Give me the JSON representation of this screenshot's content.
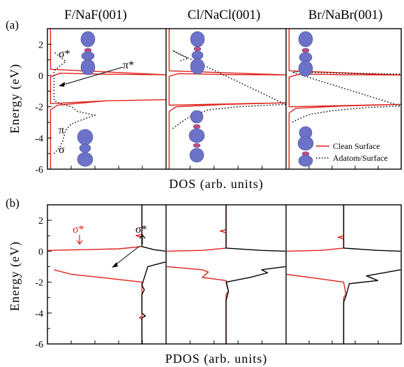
{
  "figure": {
    "column_titles": [
      "F/NaF(001)",
      "Cl/NaCl(001)",
      "Br/NaBr(001)"
    ],
    "panel_labels": [
      "(a)",
      "(b)"
    ],
    "ylabel": "Energy  (eV)",
    "xlabel_a": "DOS  (arb. units)",
    "xlabel_b": "PDOS  (arb. units)",
    "yticks": [
      "2",
      "0",
      "-2",
      "-4",
      "-6"
    ],
    "annotations_a": {
      "sigma_star": "σ*",
      "pi_star": "π*",
      "pi": "π",
      "sigma": "σ"
    },
    "annotations_b": {
      "sigma_down": "σ*",
      "sigma_up": "σ*"
    },
    "legend": [
      "Clean Surface",
      "Adatom/Surface"
    ],
    "colors": {
      "clean": "#e0201b",
      "adatom": "#000000",
      "orbital": "#6b72c8"
    }
  },
  "chart_data": [
    {
      "type": "line",
      "panel": "(a)",
      "xlabel": "DOS  (arb. units)",
      "ylabel": "Energy  (eV)",
      "ylim": [
        -6,
        3
      ],
      "legend_placement": "bottom-right",
      "columns": [
        {
          "title": "F/NaF(001)",
          "series": [
            {
              "name": "Clean Surface",
              "points": [
                [
                  0.02,
                  -6
                ],
                [
                  0.02,
                  -2.2
                ],
                [
                  0.08,
                  -1.9
                ],
                [
                  0.5,
                  -1.62
                ],
                [
                  1,
                  -1.55
                ],
                [
                  0.5,
                  -1.62
                ],
                [
                  0.02,
                  -1.8
                ],
                [
                  0.02,
                  -0.1
                ],
                [
                  0.1,
                  0.15
                ],
                [
                  0.5,
                  0.08
                ],
                [
                  1,
                  0.05
                ],
                [
                  0.02,
                  0.4
                ],
                [
                  0.02,
                  3
                ]
              ]
            },
            {
              "name": "Adatom/Surface",
              "points": [
                [
                  0.05,
                  -5
                ],
                [
                  0.1,
                  -4.6
                ],
                [
                  0.12,
                  -4.3
                ],
                [
                  0.15,
                  -3.5
                ],
                [
                  0.2,
                  -3.1
                ],
                [
                  0.3,
                  -2.8
                ],
                [
                  0.4,
                  -2.55
                ],
                [
                  0.25,
                  -2.3
                ],
                [
                  0.2,
                  -2.0
                ],
                [
                  0.1,
                  -1.8
                ],
                [
                  0.05,
                  -1.6
                ],
                [
                  0.05,
                  0.3
                ],
                [
                  0.1,
                  0.6
                ],
                [
                  0.15,
                  0.9
                ],
                [
                  0.1,
                  1.2
                ],
                [
                  0.05,
                  1.5
                ]
              ]
            }
          ]
        },
        {
          "title": "Cl/NaCl(001)",
          "series": [
            {
              "name": "Clean Surface",
              "points": [
                [
                  0.02,
                  -6
                ],
                [
                  0.02,
                  -2.3
                ],
                [
                  0.08,
                  -2.0
                ],
                [
                  0.5,
                  -1.85
                ],
                [
                  1,
                  -1.75
                ],
                [
                  0.02,
                  -1.9
                ],
                [
                  0.02,
                  -0.05
                ],
                [
                  0.1,
                  0.12
                ],
                [
                  0.5,
                  0.06
                ],
                [
                  1,
                  0.04
                ],
                [
                  0.02,
                  0.3
                ],
                [
                  0.02,
                  3
                ]
              ]
            },
            {
              "name": "Adatom/Surface",
              "points": [
                [
                  0.05,
                  -3.4
                ],
                [
                  0.12,
                  -3.0
                ],
                [
                  0.2,
                  -2.6
                ],
                [
                  0.35,
                  -2.2
                ],
                [
                  0.6,
                  -2.0
                ],
                [
                  1,
                  -1.85
                ],
                [
                  0.05,
                  1.6
                ],
                [
                  0.12,
                  1.3
                ],
                [
                  0.18,
                  1.1
                ],
                [
                  0.1,
                  0.9
                ]
              ]
            }
          ]
        },
        {
          "title": "Br/NaBr(001)",
          "series": [
            {
              "name": "Clean Surface",
              "points": [
                [
                  0.02,
                  -6
                ],
                [
                  0.02,
                  -2.4
                ],
                [
                  0.08,
                  -2.1
                ],
                [
                  0.5,
                  -1.95
                ],
                [
                  1,
                  -1.85
                ],
                [
                  0.02,
                  -2.0
                ],
                [
                  0.02,
                  -0.1
                ],
                [
                  0.12,
                  0.1
                ],
                [
                  0.5,
                  0.05
                ],
                [
                  1,
                  0.03
                ],
                [
                  0.02,
                  0.3
                ],
                [
                  0.02,
                  3
                ]
              ]
            },
            {
              "name": "Adatom/Surface",
              "points": [
                [
                  0.05,
                  -3.0
                ],
                [
                  0.1,
                  -2.8
                ],
                [
                  0.2,
                  -2.5
                ],
                [
                  0.4,
                  -2.25
                ],
                [
                  0.7,
                  -2.05
                ],
                [
                  1,
                  -1.95
                ],
                [
                  0.05,
                  0.2
                ],
                [
                  0.1,
                  0.25
                ],
                [
                  0.3,
                  0.18
                ],
                [
                  0.6,
                  0.12
                ],
                [
                  1,
                  0.1
                ]
              ]
            }
          ]
        }
      ]
    },
    {
      "type": "line",
      "panel": "(b)",
      "xlabel": "PDOS  (arb. units)",
      "ylabel": "Energy  (eV)",
      "ylim": [
        -6,
        3
      ],
      "columns": [
        {
          "title": "F/NaF(001)",
          "series": [
            {
              "color": "red",
              "points": [
                [
                  0.05,
                  -1.2
                ],
                [
                  0.2,
                  -1.5
                ],
                [
                  0.45,
                  -1.7
                ],
                [
                  0.8,
                  -2.0
                ],
                [
                  0.8,
                  -4.2
                ],
                [
                  0.78,
                  -4.3
                ],
                [
                  0.8,
                  -4.4
                ],
                [
                  0.8,
                  -6
                ]
              ]
            },
            {
              "color": "red",
              "points": [
                [
                  0.8,
                  3
                ],
                [
                  0.8,
                  1.1
                ],
                [
                  0.75,
                  1.0
                ],
                [
                  0.8,
                  0.9
                ],
                [
                  0.8,
                  0.3
                ],
                [
                  0.6,
                  0.15
                ],
                [
                  0.0,
                  0.05
                ]
              ]
            },
            {
              "color": "black",
              "points": [
                [
                  0.8,
                  3
                ],
                [
                  0.8,
                  0.3
                ],
                [
                  0.9,
                  0.1
                ],
                [
                  1.0,
                  0.0
                ]
              ]
            },
            {
              "color": "black",
              "points": [
                [
                  1.0,
                  -0.7
                ],
                [
                  0.85,
                  -1.0
                ],
                [
                  0.8,
                  -2.2
                ],
                [
                  0.82,
                  -2.5
                ],
                [
                  0.8,
                  -2.8
                ],
                [
                  0.8,
                  -4.0
                ],
                [
                  0.83,
                  -4.2
                ],
                [
                  0.8,
                  -4.3
                ],
                [
                  0.8,
                  -6
                ]
              ]
            }
          ]
        },
        {
          "title": "Cl/NaCl(001)",
          "series": [
            {
              "color": "red",
              "points": [
                [
                  0.0,
                  -1.0
                ],
                [
                  0.3,
                  -1.2
                ],
                [
                  0.35,
                  -1.35
                ],
                [
                  0.3,
                  -1.7
                ],
                [
                  0.5,
                  -1.9
                ],
                [
                  0.52,
                  -2.6
                ],
                [
                  0.5,
                  -2.8
                ],
                [
                  0.5,
                  -6
                ]
              ]
            },
            {
              "color": "red",
              "points": [
                [
                  0.5,
                  3
                ],
                [
                  0.5,
                  1.4
                ],
                [
                  0.45,
                  1.3
                ],
                [
                  0.5,
                  1.2
                ],
                [
                  0.5,
                  0.2
                ],
                [
                  0.3,
                  0.05
                ],
                [
                  0.0,
                  0.0
                ]
              ]
            },
            {
              "color": "black",
              "points": [
                [
                  0.5,
                  3
                ],
                [
                  0.5,
                  0.2
                ],
                [
                  0.8,
                  0.05
                ],
                [
                  1.0,
                  0.0
                ]
              ]
            },
            {
              "color": "black",
              "points": [
                [
                  1.0,
                  -1.0
                ],
                [
                  0.8,
                  -1.2
                ],
                [
                  0.85,
                  -1.4
                ],
                [
                  0.7,
                  -1.7
                ],
                [
                  0.5,
                  -2.0
                ],
                [
                  0.52,
                  -2.6
                ],
                [
                  0.5,
                  -3.2
                ],
                [
                  0.5,
                  -6
                ]
              ]
            }
          ]
        },
        {
          "title": "Br/NaBr(001)",
          "series": [
            {
              "color": "red",
              "points": [
                [
                  0.0,
                  -1.5
                ],
                [
                  0.3,
                  -1.8
                ],
                [
                  0.5,
                  -2.0
                ],
                [
                  0.52,
                  -2.8
                ],
                [
                  0.5,
                  -3.0
                ],
                [
                  0.5,
                  -6
                ]
              ]
            },
            {
              "color": "red",
              "points": [
                [
                  0.5,
                  3
                ],
                [
                  0.5,
                  1.0
                ],
                [
                  0.45,
                  0.9
                ],
                [
                  0.5,
                  0.8
                ],
                [
                  0.5,
                  0.2
                ],
                [
                  0.3,
                  0.05
                ],
                [
                  0.0,
                  0.0
                ]
              ]
            },
            {
              "color": "black",
              "points": [
                [
                  0.5,
                  3
                ],
                [
                  0.5,
                  0.2
                ],
                [
                  0.8,
                  0.05
                ],
                [
                  1.0,
                  0.0
                ]
              ]
            },
            {
              "color": "black",
              "points": [
                [
                  1.0,
                  -1.2
                ],
                [
                  0.7,
                  -1.6
                ],
                [
                  0.8,
                  -1.9
                ],
                [
                  0.55,
                  -2.1
                ],
                [
                  0.52,
                  -2.9
                ],
                [
                  0.5,
                  -3.3
                ],
                [
                  0.5,
                  -6
                ]
              ]
            }
          ]
        }
      ]
    }
  ]
}
